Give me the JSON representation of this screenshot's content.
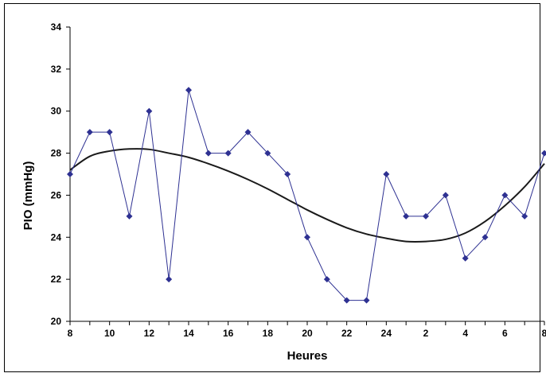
{
  "chart_data": {
    "type": "line",
    "title": "",
    "xlabel": "Heures",
    "ylabel": "PIO (mmHg)",
    "ylim": [
      20,
      34
    ],
    "yticks": [
      20,
      22,
      24,
      26,
      28,
      30,
      32,
      34
    ],
    "x_tick_labels": [
      "8",
      "10",
      "12",
      "14",
      "16",
      "18",
      "20",
      "22",
      "24",
      "2",
      "4",
      "6",
      "8"
    ],
    "grid": false,
    "legend": "none",
    "colors": {
      "series": "#2e3192",
      "trend": "#1a1a1a",
      "axis": "#000000"
    },
    "hours": [
      8,
      9,
      10,
      11,
      12,
      13,
      14,
      15,
      16,
      17,
      18,
      19,
      20,
      21,
      22,
      23,
      24,
      1,
      2,
      3,
      4,
      5,
      6,
      7,
      8
    ],
    "series": [
      {
        "values": [
          27,
          29,
          29,
          25,
          30,
          22,
          31,
          28,
          28,
          29,
          28,
          27,
          24,
          22,
          21,
          21,
          27,
          25,
          25,
          26,
          23,
          24,
          26,
          25,
          28
        ]
      }
    ],
    "trend": {
      "type": "smooth-fit",
      "values": [
        27.2,
        27.85,
        28.1,
        28.2,
        28.18,
        28.0,
        27.8,
        27.5,
        27.15,
        26.75,
        26.3,
        25.8,
        25.3,
        24.85,
        24.45,
        24.15,
        23.95,
        23.8,
        23.8,
        23.9,
        24.2,
        24.75,
        25.5,
        26.4,
        27.5
      ]
    }
  }
}
